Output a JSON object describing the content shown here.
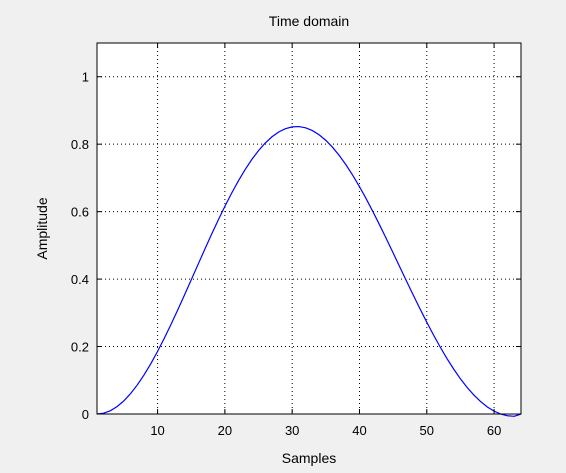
{
  "chart_data": {
    "type": "line",
    "title": "Time domain",
    "xlabel": "Samples",
    "ylabel": "Amplitude",
    "xlim": [
      1,
      64
    ],
    "ylim": [
      0,
      1.1
    ],
    "xticks": [
      10,
      20,
      30,
      40,
      50,
      60
    ],
    "yticks": [
      0,
      0.2,
      0.4,
      0.6,
      0.8,
      1
    ],
    "ytick_labels": [
      "0",
      "0.2",
      "0.4",
      "0.6",
      "0.8",
      "1"
    ],
    "grid": true,
    "series": [
      {
        "color": "#0000ff",
        "x": [
          1,
          2,
          3,
          4,
          5,
          6,
          7,
          8,
          9,
          10,
          11,
          12,
          13,
          14,
          15,
          16,
          17,
          18,
          19,
          20,
          21,
          22,
          23,
          24,
          25,
          26,
          27,
          28,
          29,
          30,
          31,
          32,
          33,
          34,
          35,
          36,
          37,
          38,
          39,
          40,
          41,
          42,
          43,
          44,
          45,
          46,
          47,
          48,
          49,
          50,
          51,
          52,
          53,
          54,
          55,
          56,
          57,
          58,
          59,
          60,
          61,
          62,
          63,
          64
        ],
        "values": [
          0,
          0.0025,
          0.0099,
          0.0222,
          0.0392,
          0.0608,
          0.0865,
          0.1161,
          0.1493,
          0.1856,
          0.2245,
          0.2657,
          0.3086,
          0.3527,
          0.3976,
          0.4427,
          0.4876,
          0.5317,
          0.5745,
          0.6157,
          0.6546,
          0.691,
          0.7244,
          0.7545,
          0.7809,
          0.8035,
          0.822,
          0.8362,
          0.846,
          0.8513,
          0.8522,
          0.8485,
          0.8404,
          0.8279,
          0.8113,
          0.7907,
          0.7664,
          0.7386,
          0.7077,
          0.6741,
          0.638,
          0.5999,
          0.5602,
          0.5193,
          0.4776,
          0.4356,
          0.3937,
          0.3522,
          0.3116,
          0.2722,
          0.2343,
          0.1983,
          0.1645,
          0.1331,
          0.1044,
          0.0787,
          0.0561,
          0.0368,
          0.0209,
          0.0085,
          -0.0003,
          -0.0053,
          -0.0068,
          0
        ]
      }
    ]
  }
}
